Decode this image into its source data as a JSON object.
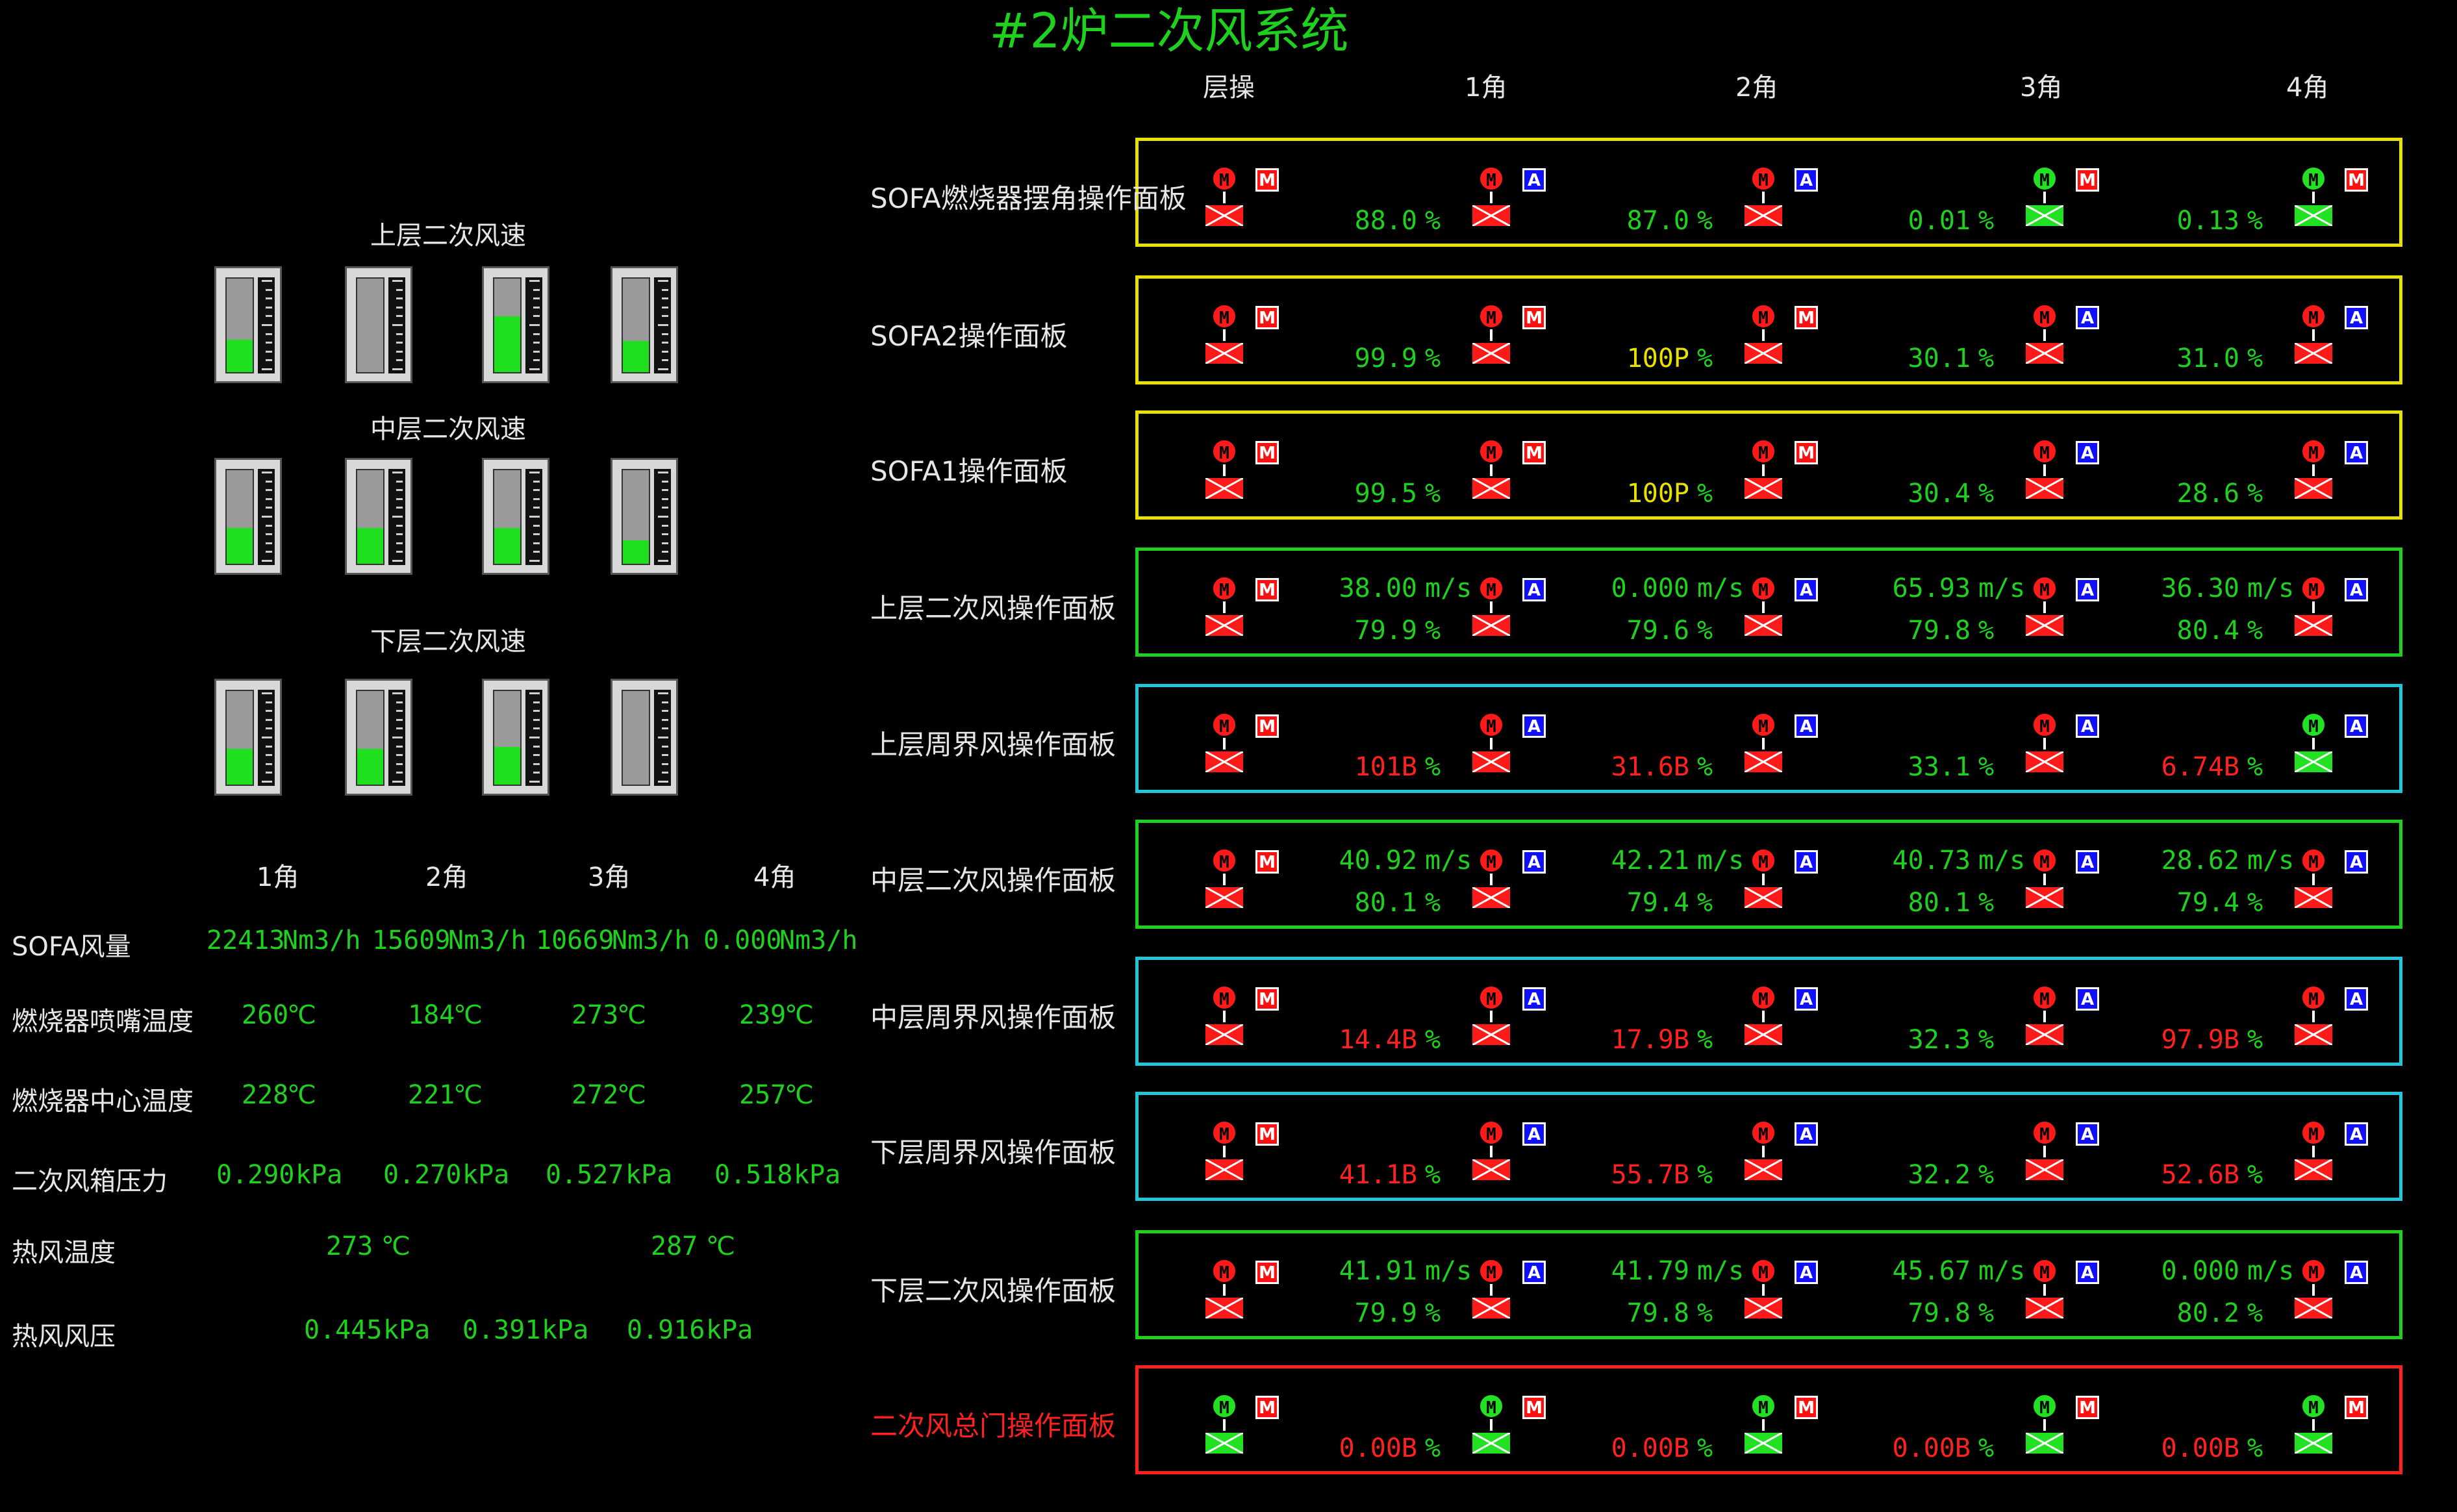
{
  "title": "#2炉二次风系统",
  "colors": {
    "green": "#1fd11f",
    "red": "#ff2020",
    "yellow": "#e8e000",
    "cyan": "#22c6d8"
  },
  "gauges": {
    "upper": {
      "label": "上层二次风速",
      "levels": [
        0.35,
        0.0,
        0.6,
        0.33
      ]
    },
    "middle": {
      "label": "中层二次风速",
      "levels": [
        0.38,
        0.38,
        0.38,
        0.25
      ]
    },
    "lower": {
      "label": "下层二次风速",
      "levels": [
        0.38,
        0.38,
        0.4,
        0.0
      ]
    }
  },
  "left_table": {
    "corners": [
      "1角",
      "2角",
      "3角",
      "4角"
    ],
    "rows": [
      {
        "label": "SOFA风量",
        "values": [
          "22413",
          "15609",
          "10669",
          "0.000"
        ],
        "unit": "Nm3/h"
      },
      {
        "label": "燃烧器喷嘴温度",
        "values": [
          "260",
          "184",
          "273",
          "239"
        ],
        "unit": "℃"
      },
      {
        "label": "燃烧器中心温度",
        "values": [
          "228",
          "221",
          "272",
          "257"
        ],
        "unit": "℃"
      },
      {
        "label": "二次风箱压力",
        "values": [
          "0.290",
          "0.270",
          "0.527",
          "0.518"
        ],
        "unit": "kPa"
      }
    ],
    "hot_air_temp": {
      "label": "热风温度",
      "values": [
        "273",
        "287"
      ],
      "unit": "℃"
    },
    "hot_air_press": {
      "label": "热风风压",
      "values": [
        "0.445",
        "0.391",
        "0.916"
      ],
      "unit": "kPa"
    }
  },
  "col_headers": [
    "层操",
    "1角",
    "2角",
    "3角",
    "4角"
  ],
  "panels": [
    {
      "label": "SOFA燃烧器摆角操作面板",
      "color": "yellow",
      "level": {
        "dev": "red",
        "mode": "M"
      },
      "corners": [
        {
          "dev": "red",
          "mode": "A",
          "v2": "88.0",
          "u2": "%",
          "c2": "green"
        },
        {
          "dev": "red",
          "mode": "A",
          "v2": "87.0",
          "u2": "%",
          "c2": "green"
        },
        {
          "dev": "green",
          "mode": "M",
          "v2": "0.01",
          "u2": "%",
          "c2": "green"
        },
        {
          "dev": "green",
          "mode": "M",
          "v2": "0.13",
          "u2": "%",
          "c2": "green"
        }
      ]
    },
    {
      "label": "SOFA2操作面板",
      "color": "yellow",
      "level": {
        "dev": "red",
        "mode": "M"
      },
      "corners": [
        {
          "dev": "red",
          "mode": "M",
          "v2": "99.9",
          "u2": "%",
          "c2": "green"
        },
        {
          "dev": "red",
          "mode": "M",
          "v2": "100P",
          "u2": "%",
          "c2": "yellow"
        },
        {
          "dev": "red",
          "mode": "A",
          "v2": "30.1",
          "u2": "%",
          "c2": "green"
        },
        {
          "dev": "red",
          "mode": "A",
          "v2": "31.0",
          "u2": "%",
          "c2": "green"
        }
      ]
    },
    {
      "label": "SOFA1操作面板",
      "color": "yellow",
      "level": {
        "dev": "red",
        "mode": "M"
      },
      "corners": [
        {
          "dev": "red",
          "mode": "M",
          "v2": "99.5",
          "u2": "%",
          "c2": "green"
        },
        {
          "dev": "red",
          "mode": "M",
          "v2": "100P",
          "u2": "%",
          "c2": "yellow"
        },
        {
          "dev": "red",
          "mode": "A",
          "v2": "30.4",
          "u2": "%",
          "c2": "green"
        },
        {
          "dev": "red",
          "mode": "A",
          "v2": "28.6",
          "u2": "%",
          "c2": "green"
        }
      ]
    },
    {
      "label": "上层二次风操作面板",
      "color": "green",
      "level": {
        "dev": "red",
        "mode": "M"
      },
      "corners": [
        {
          "dev": "red",
          "mode": "A",
          "v1": "38.00",
          "u1": "m/s",
          "v2": "79.9",
          "u2": "%",
          "c2": "green"
        },
        {
          "dev": "red",
          "mode": "A",
          "v1": "0.000",
          "u1": "m/s",
          "v2": "79.6",
          "u2": "%",
          "c2": "green"
        },
        {
          "dev": "red",
          "mode": "A",
          "v1": "65.93",
          "u1": "m/s",
          "v2": "79.8",
          "u2": "%",
          "c2": "green"
        },
        {
          "dev": "red",
          "mode": "A",
          "v1": "36.30",
          "u1": "m/s",
          "v2": "80.4",
          "u2": "%",
          "c2": "green"
        }
      ]
    },
    {
      "label": "上层周界风操作面板",
      "color": "cyan",
      "level": {
        "dev": "red",
        "mode": "M"
      },
      "corners": [
        {
          "dev": "red",
          "mode": "A",
          "v2": "101B",
          "u2": "%",
          "c2": "red"
        },
        {
          "dev": "red",
          "mode": "A",
          "v2": "31.6B",
          "u2": "%",
          "c2": "red"
        },
        {
          "dev": "red",
          "mode": "A",
          "v2": "33.1",
          "u2": "%",
          "c2": "green"
        },
        {
          "dev": "green",
          "mode": "A",
          "v2": "6.74B",
          "u2": "%",
          "c2": "red"
        }
      ]
    },
    {
      "label": "中层二次风操作面板",
      "color": "green",
      "level": {
        "dev": "red",
        "mode": "M"
      },
      "corners": [
        {
          "dev": "red",
          "mode": "A",
          "v1": "40.92",
          "u1": "m/s",
          "v2": "80.1",
          "u2": "%",
          "c2": "green"
        },
        {
          "dev": "red",
          "mode": "A",
          "v1": "42.21",
          "u1": "m/s",
          "v2": "79.4",
          "u2": "%",
          "c2": "green"
        },
        {
          "dev": "red",
          "mode": "A",
          "v1": "40.73",
          "u1": "m/s",
          "v2": "80.1",
          "u2": "%",
          "c2": "green"
        },
        {
          "dev": "red",
          "mode": "A",
          "v1": "28.62",
          "u1": "m/s",
          "v2": "79.4",
          "u2": "%",
          "c2": "green"
        }
      ]
    },
    {
      "label": "中层周界风操作面板",
      "color": "cyan",
      "level": {
        "dev": "red",
        "mode": "M"
      },
      "corners": [
        {
          "dev": "red",
          "mode": "A",
          "v2": "14.4B",
          "u2": "%",
          "c2": "red"
        },
        {
          "dev": "red",
          "mode": "A",
          "v2": "17.9B",
          "u2": "%",
          "c2": "red"
        },
        {
          "dev": "red",
          "mode": "A",
          "v2": "32.3",
          "u2": "%",
          "c2": "green"
        },
        {
          "dev": "red",
          "mode": "A",
          "v2": "97.9B",
          "u2": "%",
          "c2": "red"
        }
      ]
    },
    {
      "label": "下层周界风操作面板",
      "color": "cyan",
      "level": {
        "dev": "red",
        "mode": "M"
      },
      "corners": [
        {
          "dev": "red",
          "mode": "A",
          "v2": "41.1B",
          "u2": "%",
          "c2": "red"
        },
        {
          "dev": "red",
          "mode": "A",
          "v2": "55.7B",
          "u2": "%",
          "c2": "red"
        },
        {
          "dev": "red",
          "mode": "A",
          "v2": "32.2",
          "u2": "%",
          "c2": "green"
        },
        {
          "dev": "red",
          "mode": "A",
          "v2": "52.6B",
          "u2": "%",
          "c2": "red"
        }
      ]
    },
    {
      "label": "下层二次风操作面板",
      "color": "green",
      "level": {
        "dev": "red",
        "mode": "M"
      },
      "corners": [
        {
          "dev": "red",
          "mode": "A",
          "v1": "41.91",
          "u1": "m/s",
          "v2": "79.9",
          "u2": "%",
          "c2": "green"
        },
        {
          "dev": "red",
          "mode": "A",
          "v1": "41.79",
          "u1": "m/s",
          "v2": "79.8",
          "u2": "%",
          "c2": "green"
        },
        {
          "dev": "red",
          "mode": "A",
          "v1": "45.67",
          "u1": "m/s",
          "v2": "79.8",
          "u2": "%",
          "c2": "green"
        },
        {
          "dev": "red",
          "mode": "A",
          "v1": "0.000",
          "u1": "m/s",
          "v2": "80.2",
          "u2": "%",
          "c2": "green"
        }
      ]
    },
    {
      "label": "二次风总门操作面板",
      "color": "red",
      "labelColor": "red",
      "level": {
        "dev": "green",
        "mode": "M"
      },
      "corners": [
        {
          "dev": "green",
          "mode": "M",
          "v2": "0.00B",
          "u2": "%",
          "c2": "red"
        },
        {
          "dev": "green",
          "mode": "M",
          "v2": "0.00B",
          "u2": "%",
          "c2": "red"
        },
        {
          "dev": "green",
          "mode": "M",
          "v2": "0.00B",
          "u2": "%",
          "c2": "red"
        },
        {
          "dev": "green",
          "mode": "M",
          "v2": "0.00B",
          "u2": "%",
          "c2": "red"
        }
      ]
    }
  ]
}
